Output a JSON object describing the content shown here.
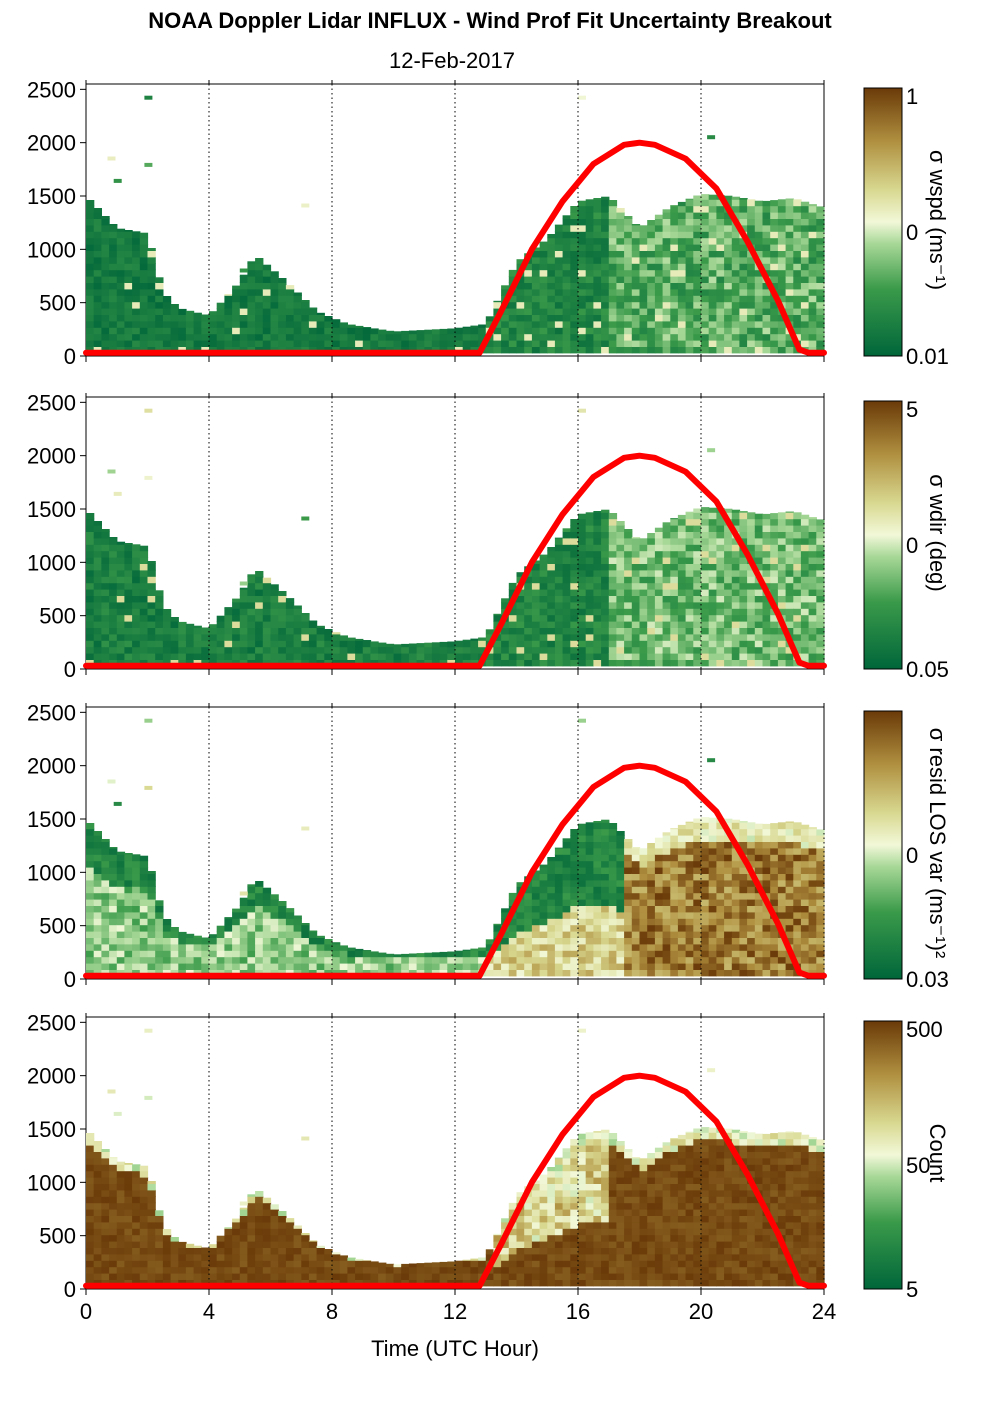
{
  "title": "NOAA Doppler Lidar INFLUX - Wind Prof Fit Uncertainty Breakout",
  "subtitle": "12-Feb-2017",
  "colors": {
    "sun_curve": "#ff0000",
    "scale_dark_green": "#00663a",
    "scale_mid_green": "#5cb85c",
    "scale_pale": "#f2f8d8",
    "scale_tan": "#b8a050",
    "scale_brown": "#6a3a08"
  },
  "chart_data": {
    "type": "heatmap",
    "xlabel": "Time (UTC Hour)",
    "xlim": [
      0,
      24
    ],
    "x_ticks": [
      "0",
      "4",
      "8",
      "12",
      "16",
      "20",
      "24"
    ],
    "ylim": [
      0,
      2550
    ],
    "y_ticks": [
      "0",
      "500",
      "1000",
      "1500",
      "2000",
      "2500"
    ],
    "vertical_gridlines_hours": [
      4,
      8,
      12,
      16,
      20,
      24
    ],
    "sun_elevation_curve": {
      "x": [
        0,
        12.8,
        13.5,
        14.5,
        15.5,
        16.5,
        17.5,
        18,
        18.5,
        19.5,
        20.5,
        21.5,
        22.5,
        23.2,
        23.5,
        24
      ],
      "y": [
        30,
        30,
        420,
        1000,
        1450,
        1800,
        1980,
        2000,
        1980,
        1850,
        1570,
        1080,
        520,
        60,
        30,
        30
      ]
    },
    "panels": [
      {
        "colorbar_label": "σ wspd (ms⁻¹)",
        "colorbar_ticks": [
          "1",
          "0",
          "0.01"
        ],
        "profile_top_m": [
          [
            0,
            1500
          ],
          [
            1,
            1200
          ],
          [
            2,
            1150
          ],
          [
            2.5,
            600
          ],
          [
            3,
            450
          ],
          [
            4,
            380
          ],
          [
            5,
            700
          ],
          [
            5.5,
            950
          ],
          [
            6.5,
            700
          ],
          [
            7.5,
            420
          ],
          [
            8.5,
            300
          ],
          [
            10,
            230
          ],
          [
            12,
            260
          ],
          [
            13,
            300
          ],
          [
            14,
            880
          ],
          [
            15,
            1100
          ],
          [
            16,
            1450
          ],
          [
            17,
            1500
          ],
          [
            18,
            1200
          ],
          [
            19,
            1400
          ],
          [
            20,
            1520
          ],
          [
            21,
            1500
          ],
          [
            22,
            1450
          ],
          [
            23,
            1480
          ],
          [
            23.9,
            1400
          ]
        ],
        "scatter_points": [
          [
            1.9,
            2440
          ],
          [
            0.7,
            1870
          ],
          [
            1.9,
            1810
          ],
          [
            0.9,
            1660
          ],
          [
            5,
            820
          ],
          [
            16,
            2440
          ],
          [
            20.2,
            2070
          ],
          [
            7,
            1430
          ]
        ],
        "field": "wspd"
      },
      {
        "colorbar_label": "σ wdir (deg)",
        "colorbar_ticks": [
          "5",
          "0",
          "0.05"
        ],
        "profile_top_m": [
          [
            0,
            1500
          ],
          [
            1,
            1200
          ],
          [
            2,
            1150
          ],
          [
            2.5,
            600
          ],
          [
            3,
            450
          ],
          [
            4,
            380
          ],
          [
            5,
            700
          ],
          [
            5.5,
            950
          ],
          [
            6.5,
            700
          ],
          [
            7.5,
            420
          ],
          [
            8.5,
            300
          ],
          [
            10,
            230
          ],
          [
            12,
            260
          ],
          [
            13,
            300
          ],
          [
            14,
            880
          ],
          [
            15,
            1100
          ],
          [
            16,
            1450
          ],
          [
            17,
            1500
          ],
          [
            18,
            1200
          ],
          [
            19,
            1400
          ],
          [
            20,
            1520
          ],
          [
            21,
            1500
          ],
          [
            22,
            1450
          ],
          [
            23,
            1480
          ],
          [
            23.9,
            1400
          ]
        ],
        "scatter_points": [
          [
            1.9,
            2440
          ],
          [
            0.7,
            1870
          ],
          [
            1.9,
            1810
          ],
          [
            0.9,
            1660
          ],
          [
            5,
            820
          ],
          [
            16,
            2440
          ],
          [
            20.2,
            2070
          ],
          [
            7,
            1430
          ]
        ],
        "field": "wdir"
      },
      {
        "colorbar_label": "σ resid LOS var (ms⁻¹)²",
        "colorbar_ticks": [
          "0",
          "0.03"
        ],
        "profile_top_m": [
          [
            0,
            1500
          ],
          [
            1,
            1200
          ],
          [
            2,
            1150
          ],
          [
            2.5,
            600
          ],
          [
            3,
            450
          ],
          [
            4,
            380
          ],
          [
            5,
            700
          ],
          [
            5.5,
            950
          ],
          [
            6.5,
            700
          ],
          [
            7.5,
            420
          ],
          [
            8.5,
            300
          ],
          [
            10,
            230
          ],
          [
            12,
            260
          ],
          [
            13,
            300
          ],
          [
            14,
            880
          ],
          [
            15,
            1100
          ],
          [
            16,
            1450
          ],
          [
            17,
            1500
          ],
          [
            18,
            1200
          ],
          [
            19,
            1400
          ],
          [
            20,
            1520
          ],
          [
            21,
            1500
          ],
          [
            22,
            1450
          ],
          [
            23,
            1480
          ],
          [
            23.9,
            1400
          ]
        ],
        "scatter_points": [
          [
            1.9,
            2440
          ],
          [
            0.7,
            1870
          ],
          [
            1.9,
            1810
          ],
          [
            0.9,
            1660
          ],
          [
            5,
            820
          ],
          [
            16,
            2440
          ],
          [
            20.2,
            2070
          ],
          [
            7,
            1430
          ]
        ],
        "field": "resid"
      },
      {
        "colorbar_label": "Count",
        "colorbar_ticks": [
          "500",
          "50",
          "5"
        ],
        "profile_top_m": [
          [
            0,
            1500
          ],
          [
            1,
            1200
          ],
          [
            2,
            1150
          ],
          [
            2.5,
            600
          ],
          [
            3,
            450
          ],
          [
            4,
            380
          ],
          [
            5,
            700
          ],
          [
            5.5,
            950
          ],
          [
            6.5,
            700
          ],
          [
            7.5,
            420
          ],
          [
            8.5,
            300
          ],
          [
            10,
            230
          ],
          [
            12,
            260
          ],
          [
            13,
            300
          ],
          [
            14,
            880
          ],
          [
            15,
            1100
          ],
          [
            16,
            1450
          ],
          [
            17,
            1500
          ],
          [
            18,
            1200
          ],
          [
            19,
            1400
          ],
          [
            20,
            1520
          ],
          [
            21,
            1500
          ],
          [
            22,
            1450
          ],
          [
            23,
            1480
          ],
          [
            23.9,
            1400
          ]
        ],
        "scatter_points": [
          [
            1.9,
            2440
          ],
          [
            0.7,
            1870
          ],
          [
            1.9,
            1810
          ],
          [
            0.9,
            1660
          ],
          [
            5,
            820
          ],
          [
            16,
            2440
          ],
          [
            20.2,
            2070
          ],
          [
            7,
            1430
          ]
        ],
        "field": "count"
      }
    ]
  }
}
